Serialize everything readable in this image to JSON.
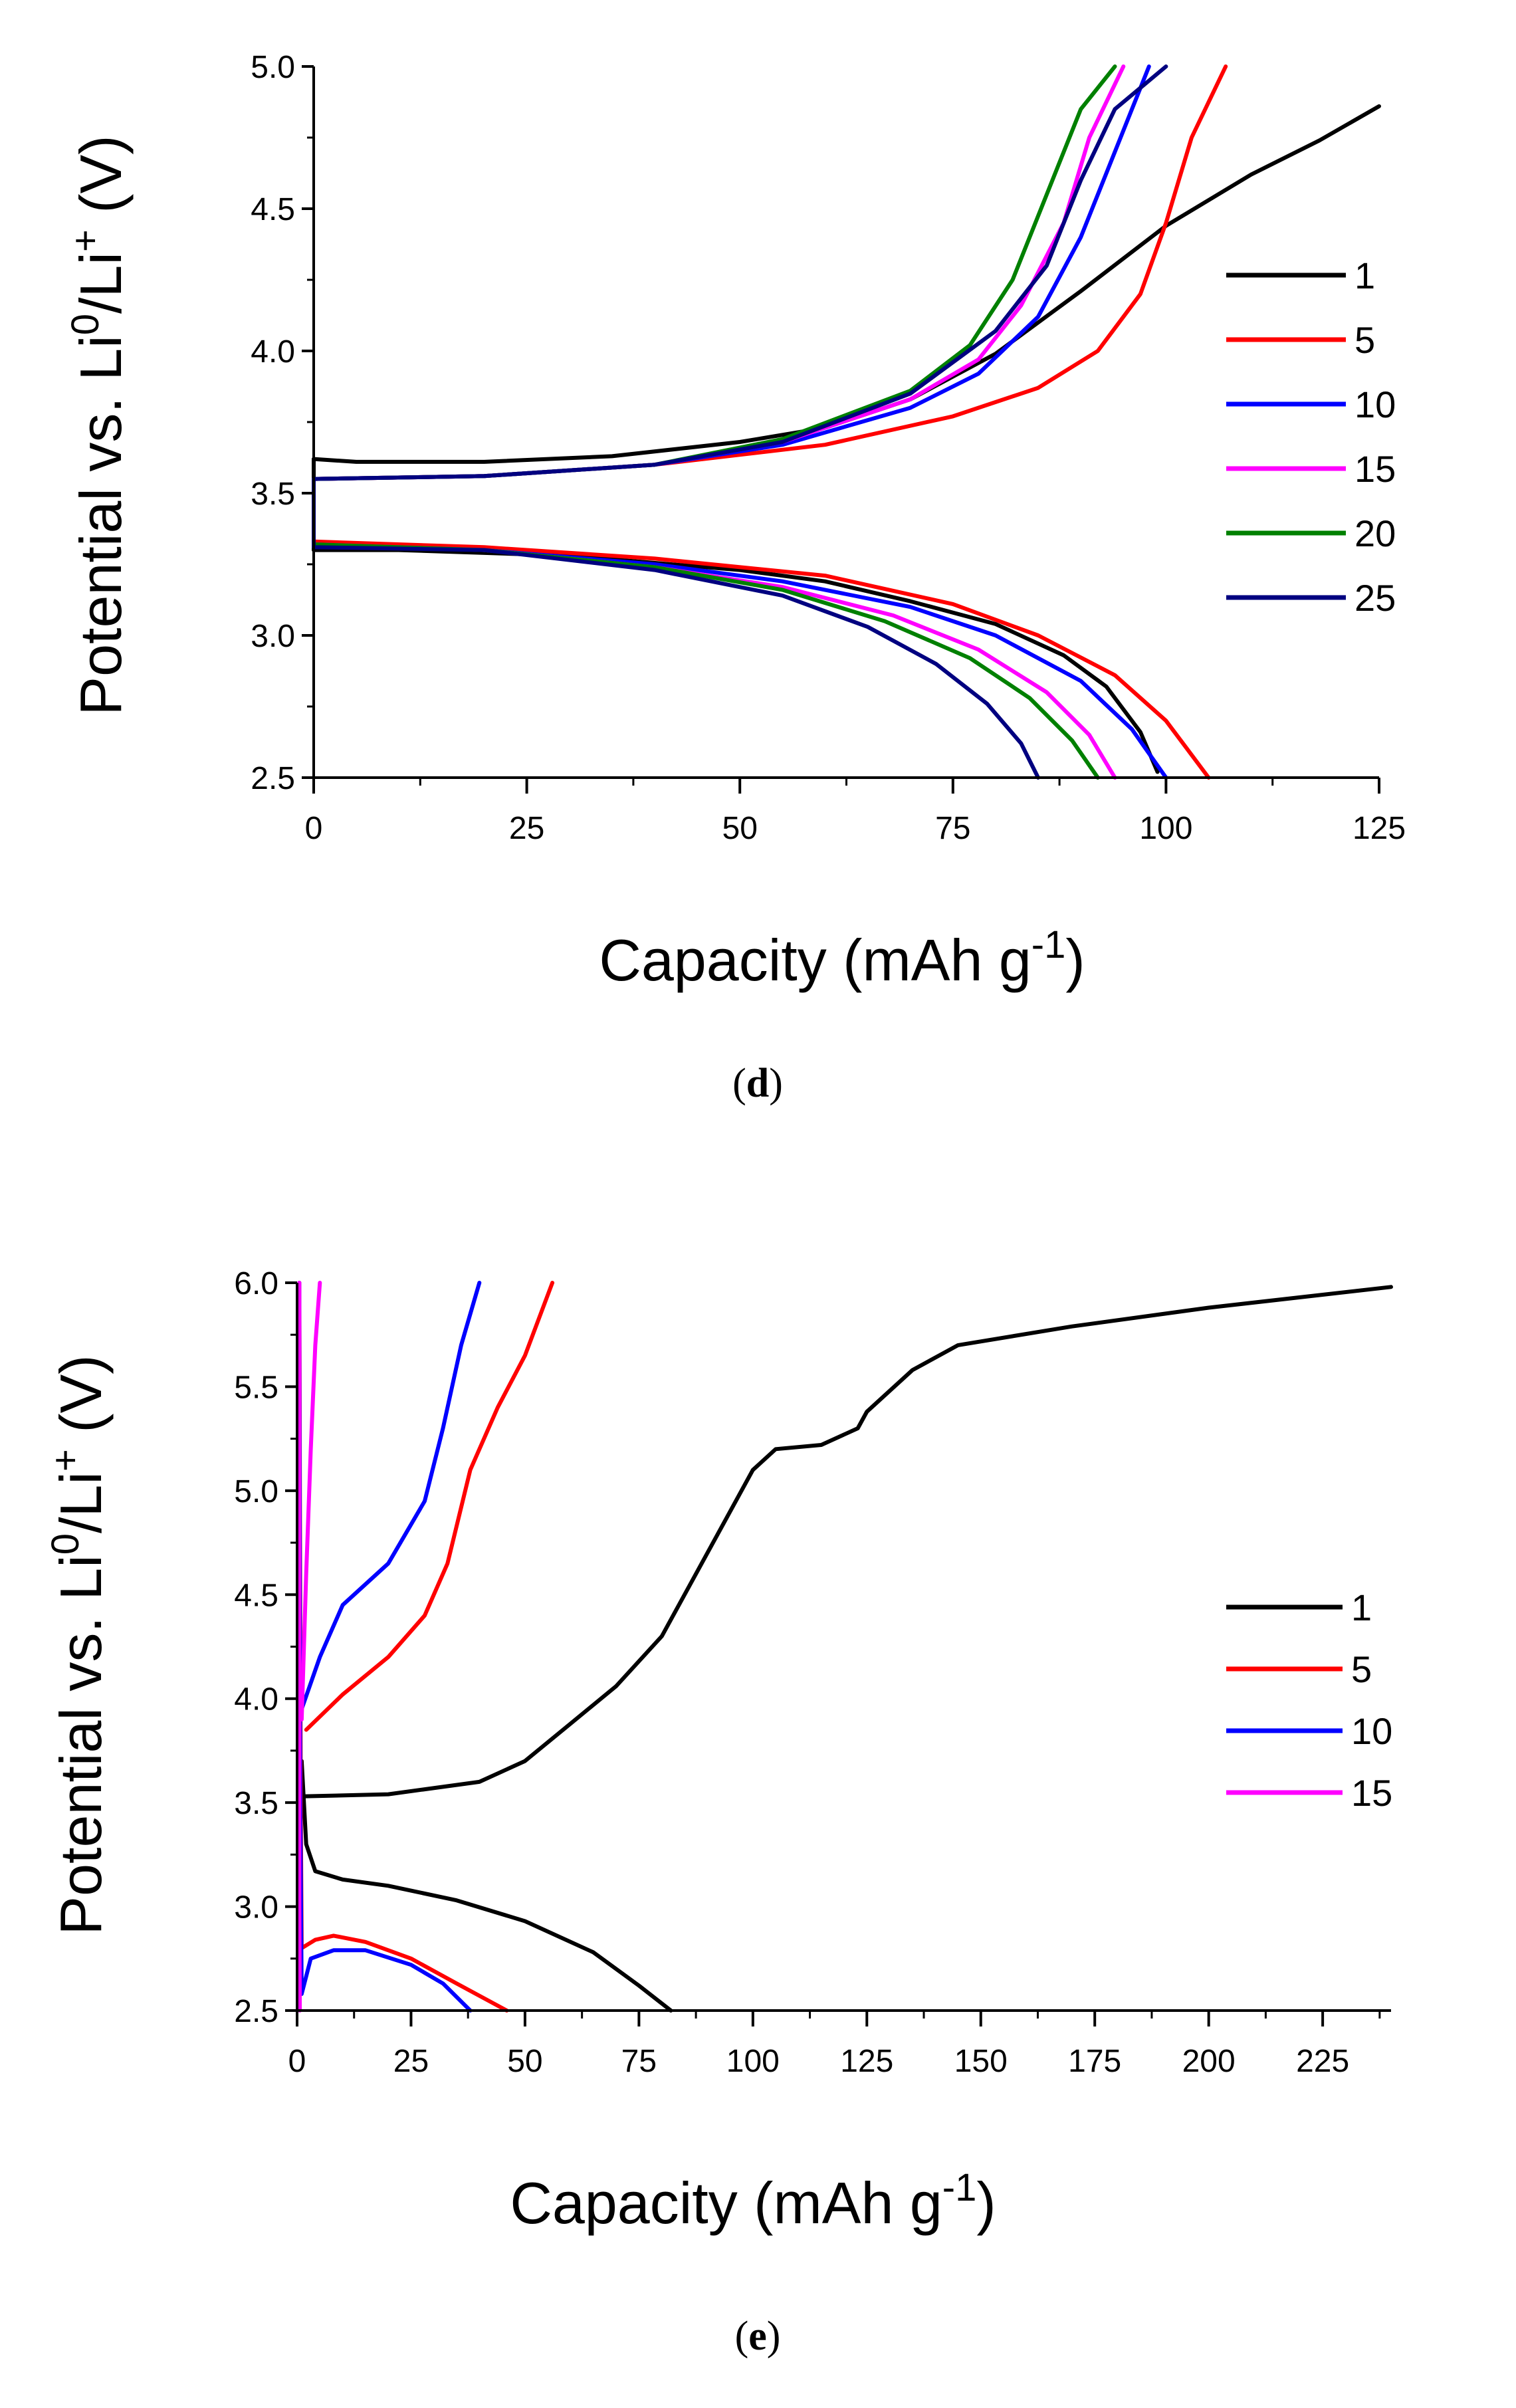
{
  "chart_data": [
    {
      "type": "line",
      "panel": "d",
      "caption_open": "(",
      "caption_letter": "d",
      "caption_close": ")",
      "xlabel": "Capacity (mAh g",
      "xlabel_sup": "-1",
      "xlabel_end": ")",
      "ylabel": "Potential vs. Li",
      "ylabel_sup1": "0",
      "ylabel_mid": "/Li",
      "ylabel_sup2": "+",
      "ylabel_end": " (V)",
      "xlim": [
        0,
        125
      ],
      "ylim": [
        2.5,
        5.0
      ],
      "xticks": [
        0,
        25,
        50,
        75,
        100,
        125
      ],
      "xtick_labels": [
        "0",
        "25",
        "50",
        "75",
        "100",
        "125"
      ],
      "xminor_step": 12.5,
      "yticks": [
        2.5,
        3.0,
        3.5,
        4.0,
        4.5,
        5.0
      ],
      "ytick_labels": [
        "2.5",
        "3.0",
        "3.5",
        "4.0",
        "4.5",
        "5.0"
      ],
      "legend_position": "right",
      "series": [
        {
          "name": "1",
          "color": "#000000",
          "charge": [
            [
              0,
              3.62
            ],
            [
              5,
              3.61
            ],
            [
              20,
              3.61
            ],
            [
              35,
              3.63
            ],
            [
              50,
              3.68
            ],
            [
              60,
              3.73
            ],
            [
              70,
              3.83
            ],
            [
              80,
              3.99
            ],
            [
              90,
              4.21
            ],
            [
              100,
              4.44
            ],
            [
              110,
              4.62
            ],
            [
              118,
              4.74
            ],
            [
              125,
              4.86
            ]
          ],
          "discharge": [
            [
              0,
              3.62
            ],
            [
              0,
              3.3
            ],
            [
              10,
              3.3
            ],
            [
              30,
              3.28
            ],
            [
              50,
              3.23
            ],
            [
              60,
              3.19
            ],
            [
              70,
              3.12
            ],
            [
              80,
              3.04
            ],
            [
              88,
              2.93
            ],
            [
              93,
              2.82
            ],
            [
              97,
              2.66
            ],
            [
              99,
              2.52
            ]
          ]
        },
        {
          "name": "5",
          "color": "#ff0000",
          "charge": [
            [
              0,
              3.55
            ],
            [
              20,
              3.56
            ],
            [
              40,
              3.6
            ],
            [
              60,
              3.67
            ],
            [
              75,
              3.77
            ],
            [
              85,
              3.87
            ],
            [
              92,
              4.0
            ],
            [
              97,
              4.2
            ],
            [
              100,
              4.45
            ],
            [
              103,
              4.75
            ],
            [
              107,
              5.0
            ]
          ],
          "discharge": [
            [
              0,
              3.55
            ],
            [
              0,
              3.33
            ],
            [
              20,
              3.31
            ],
            [
              40,
              3.27
            ],
            [
              60,
              3.21
            ],
            [
              75,
              3.11
            ],
            [
              85,
              3.0
            ],
            [
              94,
              2.86
            ],
            [
              100,
              2.7
            ],
            [
              105,
              2.5
            ]
          ]
        },
        {
          "name": "10",
          "color": "#0000ff",
          "charge": [
            [
              0,
              3.55
            ],
            [
              20,
              3.56
            ],
            [
              40,
              3.6
            ],
            [
              55,
              3.67
            ],
            [
              70,
              3.8
            ],
            [
              78,
              3.92
            ],
            [
              85,
              4.12
            ],
            [
              90,
              4.4
            ],
            [
              94,
              4.7
            ],
            [
              98,
              5.0
            ]
          ],
          "discharge": [
            [
              0,
              3.55
            ],
            [
              0,
              3.32
            ],
            [
              20,
              3.3
            ],
            [
              40,
              3.25
            ],
            [
              55,
              3.19
            ],
            [
              70,
              3.1
            ],
            [
              80,
              3.0
            ],
            [
              90,
              2.84
            ],
            [
              96,
              2.67
            ],
            [
              100,
              2.5
            ]
          ]
        },
        {
          "name": "15",
          "color": "#ff00ff",
          "charge": [
            [
              0,
              3.55
            ],
            [
              20,
              3.56
            ],
            [
              40,
              3.6
            ],
            [
              55,
              3.68
            ],
            [
              70,
              3.83
            ],
            [
              78,
              3.97
            ],
            [
              83,
              4.16
            ],
            [
              88,
              4.45
            ],
            [
              91,
              4.75
            ],
            [
              95,
              5.0
            ]
          ],
          "discharge": [
            [
              0,
              3.55
            ],
            [
              0,
              3.32
            ],
            [
              20,
              3.3
            ],
            [
              40,
              3.24
            ],
            [
              55,
              3.17
            ],
            [
              68,
              3.07
            ],
            [
              78,
              2.95
            ],
            [
              86,
              2.8
            ],
            [
              91,
              2.65
            ],
            [
              94,
              2.5
            ]
          ]
        },
        {
          "name": "20",
          "color": "#008000",
          "charge": [
            [
              0,
              3.55
            ],
            [
              20,
              3.56
            ],
            [
              40,
              3.6
            ],
            [
              55,
              3.69
            ],
            [
              70,
              3.86
            ],
            [
              77,
              4.02
            ],
            [
              82,
              4.25
            ],
            [
              86,
              4.55
            ],
            [
              90,
              4.85
            ],
            [
              94,
              5.0
            ]
          ],
          "discharge": [
            [
              0,
              3.55
            ],
            [
              0,
              3.32
            ],
            [
              20,
              3.3
            ],
            [
              40,
              3.24
            ],
            [
              55,
              3.16
            ],
            [
              67,
              3.05
            ],
            [
              77,
              2.92
            ],
            [
              84,
              2.78
            ],
            [
              89,
              2.63
            ],
            [
              92,
              2.5
            ]
          ]
        },
        {
          "name": "25",
          "color": "#000080",
          "charge": [
            [
              0,
              3.55
            ],
            [
              20,
              3.56
            ],
            [
              40,
              3.6
            ],
            [
              55,
              3.68
            ],
            [
              70,
              3.85
            ],
            [
              80,
              4.07
            ],
            [
              86,
              4.3
            ],
            [
              90,
              4.6
            ],
            [
              94,
              4.85
            ],
            [
              100,
              5.0
            ]
          ],
          "discharge": [
            [
              0,
              3.55
            ],
            [
              0,
              3.31
            ],
            [
              20,
              3.3
            ],
            [
              40,
              3.23
            ],
            [
              55,
              3.14
            ],
            [
              65,
              3.03
            ],
            [
              73,
              2.9
            ],
            [
              79,
              2.76
            ],
            [
              83,
              2.62
            ],
            [
              85,
              2.5
            ]
          ]
        }
      ]
    },
    {
      "type": "line",
      "panel": "e",
      "caption_open": "(",
      "caption_letter": "e",
      "caption_close": ")",
      "xlabel": "Capacity (mAh g",
      "xlabel_sup": "-1",
      "xlabel_end": ")",
      "ylabel": "Potential vs. Li",
      "ylabel_sup1": "0",
      "ylabel_mid": "/Li",
      "ylabel_sup2": "+",
      "ylabel_end": " (V)",
      "xlim": [
        0,
        240
      ],
      "ylim": [
        2.5,
        6.0
      ],
      "xticks": [
        0,
        25,
        50,
        75,
        100,
        125,
        150,
        175,
        200,
        225
      ],
      "xtick_labels": [
        "0",
        "25",
        "50",
        "75",
        "100",
        "125",
        "150",
        "175",
        "200",
        "225"
      ],
      "xminor_step": 12.5,
      "yticks": [
        2.5,
        3.0,
        3.5,
        4.0,
        4.5,
        5.0,
        5.5,
        6.0
      ],
      "ytick_labels": [
        "2.5",
        "3.0",
        "3.5",
        "4.0",
        "4.5",
        "5.0",
        "5.5",
        "6.0"
      ],
      "legend_position": "right",
      "series": [
        {
          "name": "1",
          "color": "#000000",
          "charge": [
            [
              1,
              3.53
            ],
            [
              20,
              3.54
            ],
            [
              40,
              3.6
            ],
            [
              50,
              3.7
            ],
            [
              60,
              3.88
            ],
            [
              70,
              4.06
            ],
            [
              80,
              4.3
            ],
            [
              90,
              4.7
            ],
            [
              100,
              5.1
            ],
            [
              105,
              5.2
            ],
            [
              115,
              5.22
            ],
            [
              123,
              5.3
            ],
            [
              125,
              5.38
            ],
            [
              135,
              5.58
            ],
            [
              145,
              5.7
            ],
            [
              170,
              5.79
            ],
            [
              200,
              5.88
            ],
            [
              240,
              5.98
            ]
          ],
          "discharge": [
            [
              1,
              3.53
            ],
            [
              1,
              3.7
            ],
            [
              2,
              3.3
            ],
            [
              4,
              3.17
            ],
            [
              10,
              3.13
            ],
            [
              20,
              3.1
            ],
            [
              35,
              3.03
            ],
            [
              50,
              2.93
            ],
            [
              65,
              2.78
            ],
            [
              75,
              2.62
            ],
            [
              82,
              2.5
            ]
          ]
        },
        {
          "name": "5",
          "color": "#ff0000",
          "charge": [
            [
              2,
              3.85
            ],
            [
              10,
              4.02
            ],
            [
              20,
              4.2
            ],
            [
              28,
              4.4
            ],
            [
              33,
              4.65
            ],
            [
              38,
              5.1
            ],
            [
              44,
              5.4
            ],
            [
              50,
              5.65
            ],
            [
              56,
              6.0
            ]
          ],
          "discharge": [
            [
              0.5,
              6.0
            ],
            [
              0.8,
              3.5
            ],
            [
              1,
              2.8
            ],
            [
              4,
              2.84
            ],
            [
              8,
              2.86
            ],
            [
              15,
              2.83
            ],
            [
              25,
              2.75
            ],
            [
              35,
              2.63
            ],
            [
              46,
              2.5
            ]
          ]
        },
        {
          "name": "10",
          "color": "#0000ff",
          "charge": [
            [
              1,
              3.95
            ],
            [
              5,
              4.2
            ],
            [
              10,
              4.45
            ],
            [
              20,
              4.65
            ],
            [
              28,
              4.95
            ],
            [
              32,
              5.3
            ],
            [
              36,
              5.7
            ],
            [
              40,
              6.0
            ]
          ],
          "discharge": [
            [
              0.5,
              6.0
            ],
            [
              0.7,
              3.5
            ],
            [
              1,
              2.58
            ],
            [
              3,
              2.75
            ],
            [
              8,
              2.79
            ],
            [
              15,
              2.79
            ],
            [
              25,
              2.72
            ],
            [
              32,
              2.63
            ],
            [
              38,
              2.5
            ]
          ]
        },
        {
          "name": "15",
          "color": "#ff00ff",
          "charge": [
            [
              1,
              3.9
            ],
            [
              2,
              4.6
            ],
            [
              3,
              5.2
            ],
            [
              4,
              5.7
            ],
            [
              5,
              6.0
            ]
          ],
          "discharge": [
            [
              0.5,
              6.0
            ],
            [
              0.5,
              3.0
            ],
            [
              0.6,
              2.5
            ]
          ]
        }
      ]
    }
  ]
}
